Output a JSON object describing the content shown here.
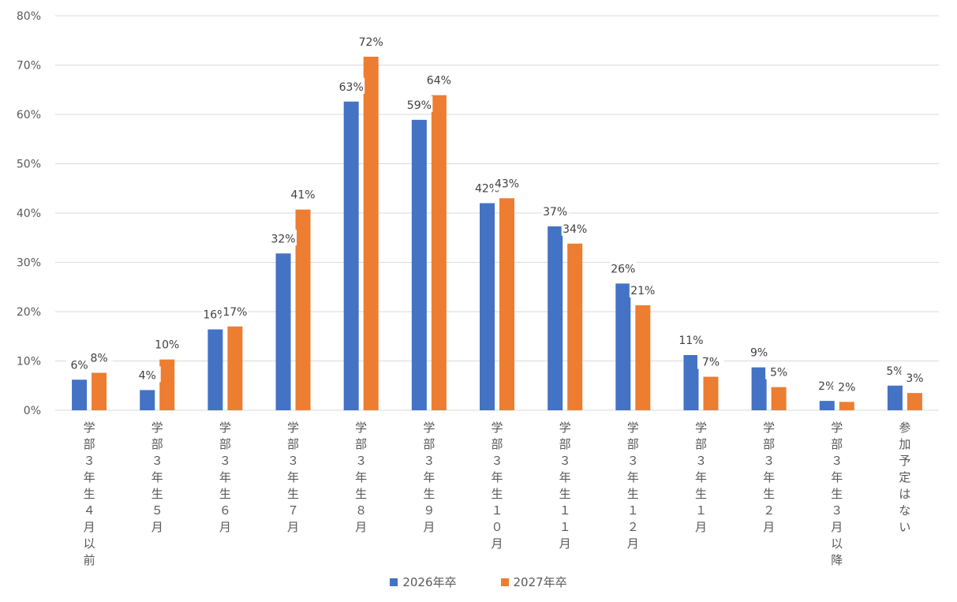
{
  "chart_data": {
    "type": "bar",
    "title": "",
    "xlabel": "",
    "ylabel": "",
    "ylim": [
      0,
      0.8
    ],
    "yticks": [
      "0%",
      "10%",
      "20%",
      "30%",
      "40%",
      "50%",
      "60%",
      "70%",
      "80%"
    ],
    "grid": true,
    "legend_position": "bottom",
    "categories": [
      "学部３年生４月以前",
      "学部３年生５月",
      "学部３年生６月",
      "学部３年生７月",
      "学部３年生８月",
      "学部３年生９月",
      "学部３年生１０月",
      "学部３年生１１月",
      "学部３年生１２月",
      "学部３年生１月",
      "学部３年生２月",
      "学部３年生３月以降",
      "参加予定はない"
    ],
    "series": [
      {
        "name": "2026年卒",
        "color": "#4472c4",
        "values": [
          0.062,
          0.041,
          0.164,
          0.318,
          0.626,
          0.589,
          0.42,
          0.373,
          0.257,
          0.112,
          0.087,
          0.019,
          0.05
        ],
        "labels": [
          "6%",
          "4%",
          "16%",
          "32%",
          "63%",
          "59%",
          "42%",
          "37%",
          "26%",
          "11%",
          "9%",
          "2%",
          "5%"
        ]
      },
      {
        "name": "2027年卒",
        "color": "#ed7d31",
        "values": [
          0.076,
          0.103,
          0.17,
          0.407,
          0.717,
          0.639,
          0.43,
          0.338,
          0.213,
          0.068,
          0.047,
          0.017,
          0.035
        ],
        "labels": [
          "8%",
          "10%",
          "17%",
          "41%",
          "72%",
          "64%",
          "43%",
          "34%",
          "21%",
          "7%",
          "5%",
          "2%",
          "3%"
        ]
      }
    ]
  }
}
